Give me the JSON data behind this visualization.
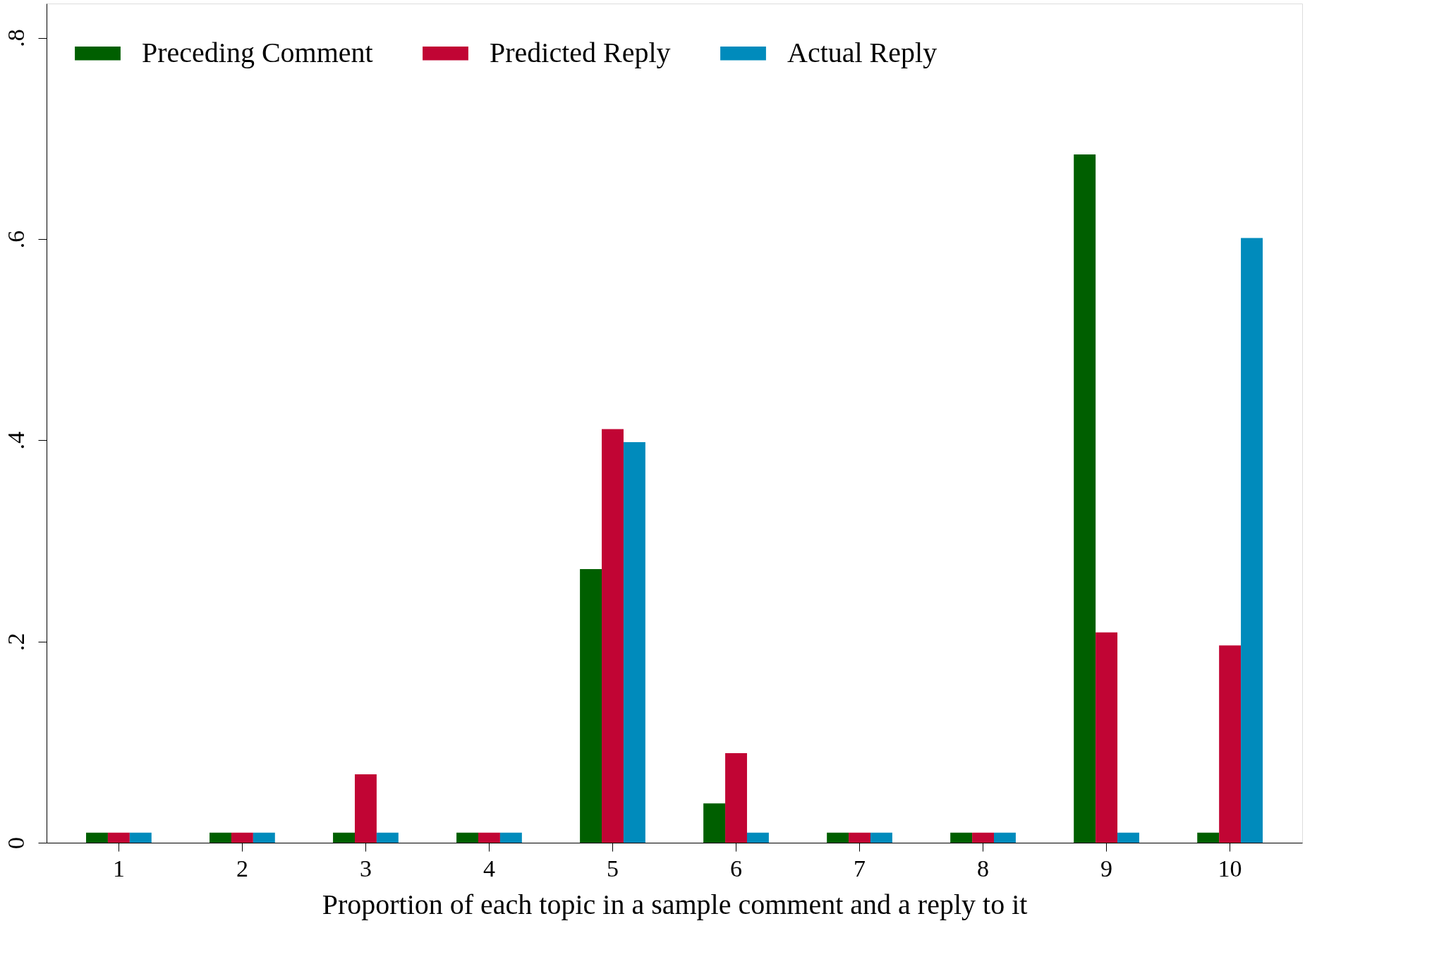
{
  "chart_data": {
    "type": "bar",
    "xlabel": "Proportion of each topic in a sample comment and a reply to it",
    "categories": [
      "1",
      "2",
      "3",
      "4",
      "5",
      "6",
      "7",
      "8",
      "9",
      "10"
    ],
    "series": [
      {
        "name": "Preceding Comment",
        "color": "#005f00",
        "values": [
          0.01,
          0.01,
          0.01,
          0.01,
          0.272,
          0.039,
          0.01,
          0.01,
          0.684,
          0.01
        ]
      },
      {
        "name": "Predicted Reply",
        "color": "#c10534",
        "values": [
          0.01,
          0.01,
          0.068,
          0.01,
          0.411,
          0.089,
          0.01,
          0.01,
          0.209,
          0.196
        ]
      },
      {
        "name": "Actual Reply",
        "color": "#008bbc",
        "values": [
          0.01,
          0.01,
          0.01,
          0.01,
          0.398,
          0.01,
          0.01,
          0.01,
          0.01,
          0.601
        ]
      }
    ],
    "ylim": [
      0,
      0.834
    ],
    "yticks": [
      {
        "value": 0,
        "label": "0"
      },
      {
        "value": 0.2,
        "label": ".2"
      },
      {
        "value": 0.4,
        "label": ".4"
      },
      {
        "value": 0.6,
        "label": ".6"
      },
      {
        "value": 0.8,
        "label": ".8"
      }
    ],
    "grid": false,
    "legend": "top"
  }
}
